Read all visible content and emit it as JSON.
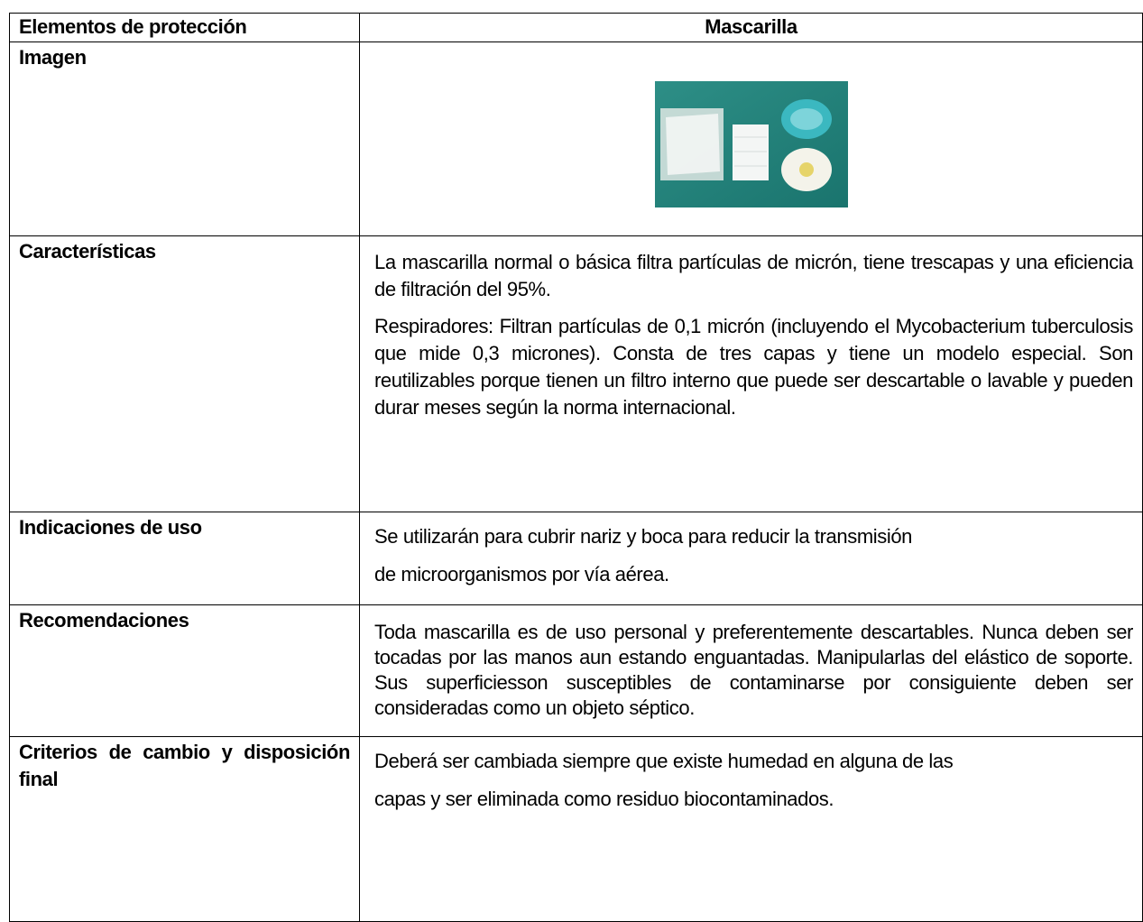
{
  "table": {
    "header": [
      "Elementos de protección",
      "Mascarilla"
    ],
    "rows": [
      {
        "label": "Imagen"
      },
      {
        "label": "Características",
        "paragraphs": [
          "La mascarilla normal o básica filtra partículas de micrón, tiene trescapas y una eficiencia de filtración del 95%.",
          "Respiradores: Filtran partículas de 0,1 micrón (incluyendo el Mycobacterium tuberculosis que mide 0,3 micrones). Consta de tres capas y tiene un modelo especial. Son reutilizables porque tienen un filtro interno que puede ser descartable o lavable y pueden durar meses según la norma internacional."
        ]
      },
      {
        "label": "Indicaciones de uso",
        "lines": [
          "Se utilizarán para cubrir nariz y boca para reducir la transmisión",
          "de microorganismos por vía aérea."
        ]
      },
      {
        "label": "Recomendaciones",
        "paragraphs": [
          "Toda mascarilla es de uso personal y preferentemente descartables. Nunca deben ser tocadas por las manos aun estando enguantadas. Manipularlas del elástico de soporte. Sus superficiesson susceptibles de contaminarse por consiguiente deben ser consideradas como un objeto séptico."
        ]
      },
      {
        "label": "Criterios de cambio y disposición final",
        "lines": [
          "Deberá ser cambiada siempre que existe humedad en alguna de las",
          "capas y ser eliminada como residuo biocontaminados."
        ]
      }
    ]
  }
}
